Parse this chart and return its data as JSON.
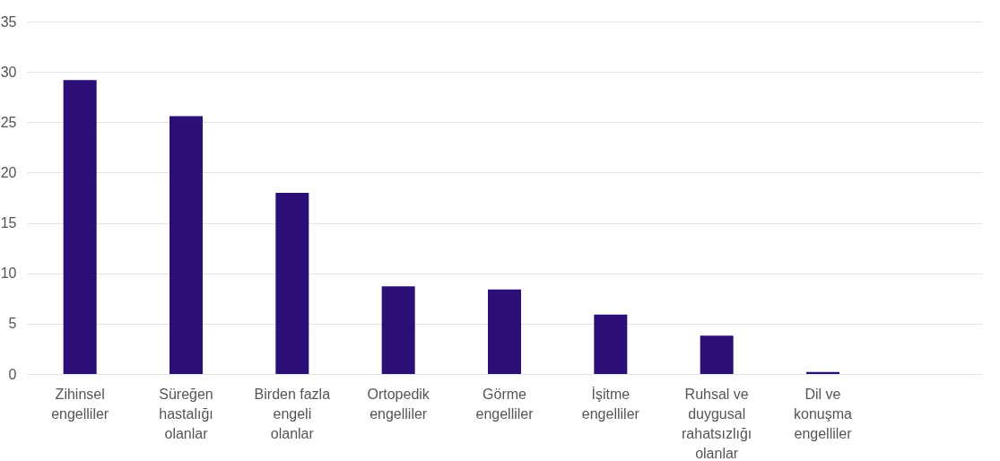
{
  "chart_data": {
    "type": "bar",
    "categories": [
      "Zihinsel engelliler",
      "Süreğen hastalığı olanlar",
      "Birden fazla engeli olanlar",
      "Ortopedik engelliler",
      "Görme engelliler",
      "İşitme engelliler",
      "Ruhsal ve duygusal rahatsızlığı olanlar",
      "Dil ve konuşma engelliler",
      null
    ],
    "values": [
      29.2,
      25.6,
      18.0,
      8.7,
      8.4,
      5.9,
      3.8,
      0.2,
      null
    ],
    "color": "#2b0f77",
    "ylim": [
      0,
      35
    ],
    "yticks": [
      0,
      5,
      10,
      15,
      20,
      25,
      30,
      35
    ],
    "grid": "y"
  }
}
